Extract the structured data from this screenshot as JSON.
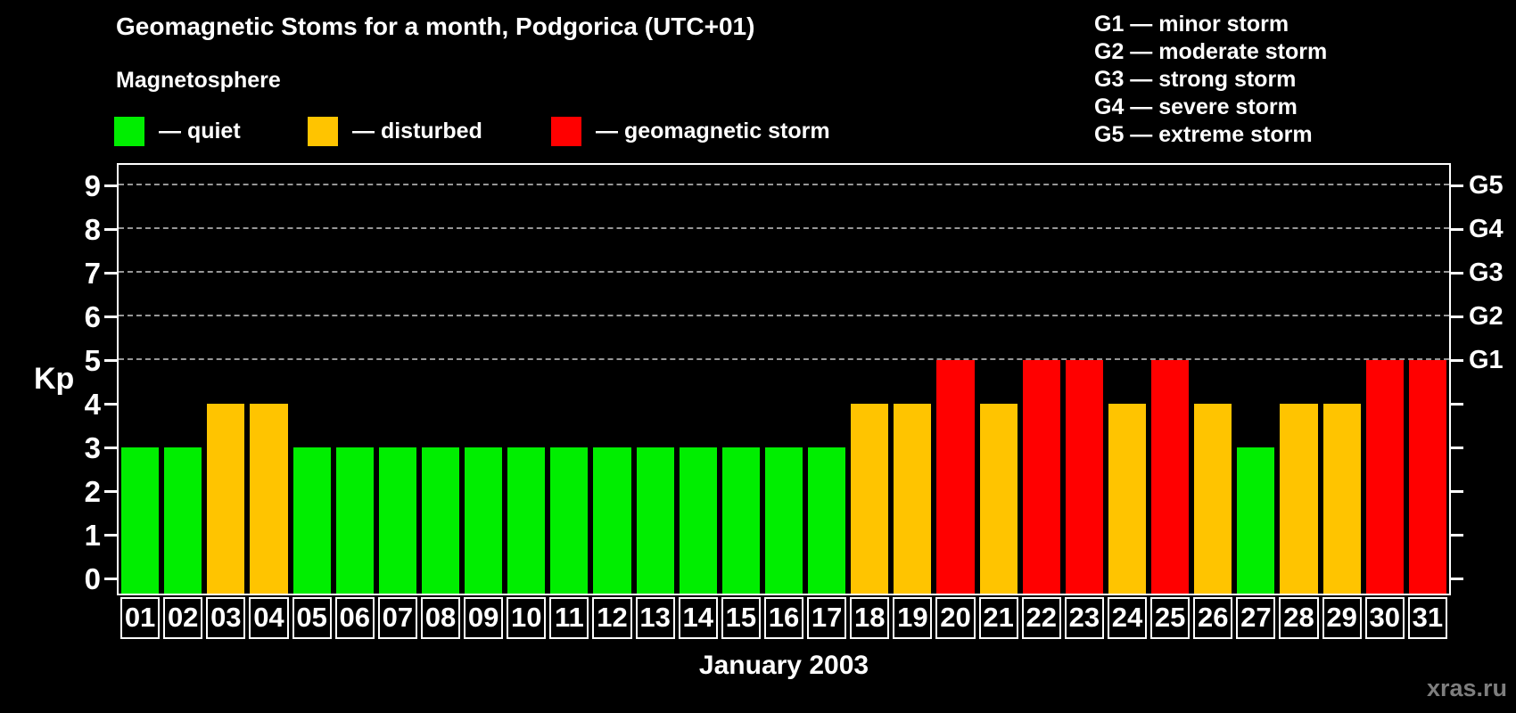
{
  "header": {
    "title": "Geomagnetic Stoms for a month, Podgorica (UTC+01)",
    "legend_title": "Magnetosphere",
    "legend": [
      {
        "label": "— quiet",
        "status": "quiet"
      },
      {
        "label": "— disturbed",
        "status": "disturbed"
      },
      {
        "label": "— geomagnetic storm",
        "status": "storm"
      }
    ]
  },
  "g_scale_legend": [
    "G1 — minor storm",
    "G2 — moderate storm",
    "G3 — strong storm",
    "G4 — severe storm",
    "G5 — extreme storm"
  ],
  "footer": {
    "xlabel": "January 2003",
    "watermark": "xras.ru"
  },
  "chart_data": {
    "type": "bar",
    "title": "Geomagnetic Stoms for a month, Podgorica (UTC+01)",
    "xlabel": "January 2003",
    "ylabel": "Kp",
    "ylim": [
      0,
      9.5
    ],
    "legend_position": "top-left",
    "grid": "horizontal dashed lines at Kp 5-9 only",
    "categories": [
      "01",
      "02",
      "03",
      "04",
      "05",
      "06",
      "07",
      "08",
      "09",
      "10",
      "11",
      "12",
      "13",
      "14",
      "15",
      "16",
      "17",
      "18",
      "19",
      "20",
      "21",
      "22",
      "23",
      "24",
      "25",
      "26",
      "27",
      "28",
      "29",
      "30",
      "31"
    ],
    "values": [
      3,
      3,
      4,
      4,
      3,
      3,
      3,
      3,
      3,
      3,
      3,
      3,
      3,
      3,
      3,
      3,
      3,
      4,
      4,
      5,
      4,
      5,
      5,
      4,
      5,
      4,
      3,
      4,
      4,
      5,
      5
    ],
    "statuses": [
      "quiet",
      "quiet",
      "disturbed",
      "disturbed",
      "quiet",
      "quiet",
      "quiet",
      "quiet",
      "quiet",
      "quiet",
      "quiet",
      "quiet",
      "quiet",
      "quiet",
      "quiet",
      "quiet",
      "quiet",
      "disturbed",
      "disturbed",
      "storm",
      "disturbed",
      "storm",
      "storm",
      "disturbed",
      "storm",
      "disturbed",
      "quiet",
      "disturbed",
      "disturbed",
      "storm",
      "storm"
    ],
    "y_ticks": [
      0,
      1,
      2,
      3,
      4,
      5,
      6,
      7,
      8,
      9
    ],
    "gridlines_at": [
      5,
      6,
      7,
      8,
      9
    ],
    "right_axis_labels": [
      {
        "kp": 5,
        "label": "G1"
      },
      {
        "kp": 6,
        "label": "G2"
      },
      {
        "kp": 7,
        "label": "G3"
      },
      {
        "kp": 8,
        "label": "G4"
      },
      {
        "kp": 9,
        "label": "G5"
      }
    ],
    "status_colors": {
      "quiet": "#00ee00",
      "disturbed": "#ffc400",
      "storm": "#ff0000"
    }
  }
}
